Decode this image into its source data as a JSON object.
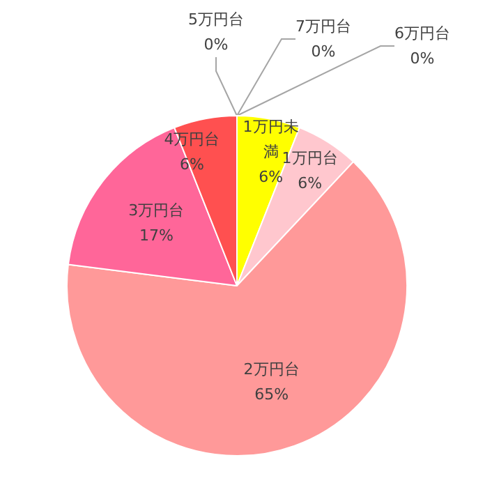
{
  "chart_data": {
    "type": "pie",
    "categories": [
      "1万円未満",
      "1万円台",
      "2万円台",
      "3万円台",
      "4万円台",
      "5万円台",
      "6万円台",
      "7万円台"
    ],
    "values": [
      6,
      6,
      65,
      17,
      6,
      0,
      0,
      0
    ],
    "value_labels": [
      "6%",
      "6%",
      "65%",
      "17%",
      "6%",
      "0%",
      "0%",
      "0%"
    ],
    "colors": [
      "#ffff00",
      "#ffc7ce",
      "#ff9999",
      "#ff6699",
      "#ff5050",
      "#a5a5a5",
      "#a5a5a5",
      "#a5a5a5"
    ],
    "legend": false
  }
}
